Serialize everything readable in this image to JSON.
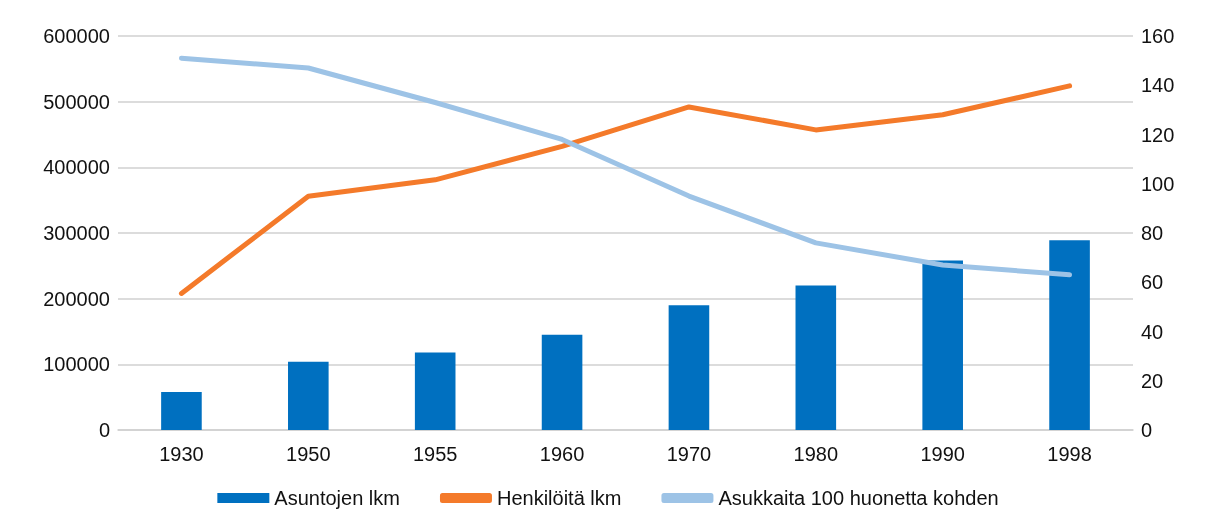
{
  "chart_data": {
    "type": "bar",
    "categories": [
      "1930",
      "1950",
      "1955",
      "1960",
      "1970",
      "1980",
      "1990",
      "1998"
    ],
    "series": [
      {
        "name": "Asuntojen lkm",
        "color": "#0070c0",
        "values": [
          58000,
          104000,
          118000,
          145000,
          190000,
          220000,
          258000,
          289000
        ]
      },
      {
        "name": "Henkilöitä lkm",
        "type": "line",
        "color": "#f47a2a",
        "values": [
          208000,
          356000,
          381000,
          432000,
          492000,
          457000,
          480000,
          524000
        ]
      },
      {
        "name": "Asukkaita 100 huonetta kohden",
        "type": "line",
        "axis": "y2",
        "color": "#9dc3e6",
        "values": [
          151,
          147,
          133,
          118,
          95,
          76,
          67,
          63
        ]
      }
    ],
    "ylim": [
      0,
      600000
    ],
    "yticks": [
      0,
      100000,
      200000,
      300000,
      400000,
      500000,
      600000
    ],
    "y2lim": [
      0,
      160
    ],
    "y2ticks": [
      0,
      20,
      40,
      60,
      80,
      100,
      120,
      140,
      160
    ],
    "grid": "y",
    "legend": "bottom",
    "marker": "none",
    "line_style": "solid"
  }
}
